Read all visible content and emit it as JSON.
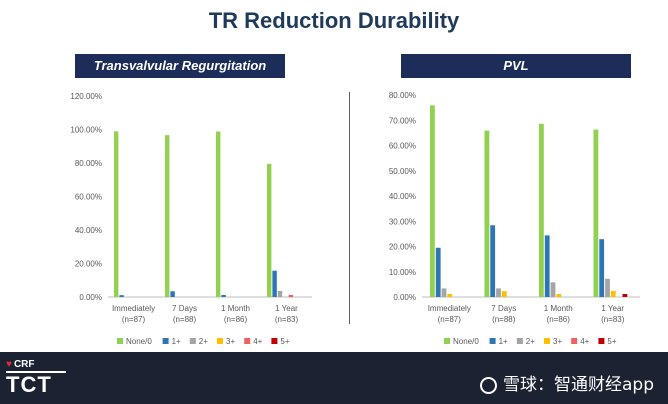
{
  "page_title": "TR Reduction Durability",
  "chart_data": [
    {
      "type": "bar",
      "title": "Transvalvular Regurgitation",
      "categories": [
        "Immediately|(n=87)",
        "7 Days|(n=88)",
        "1 Month|(n=86)",
        "1 Year|(n=83)"
      ],
      "ylim": [
        0,
        120
      ],
      "yticks": [
        "0.00%",
        "20.00%",
        "40.00%",
        "60.00%",
        "80.00%",
        "100.00%",
        "120.00%"
      ],
      "series": [
        {
          "name": "None/0",
          "color": "#92d050",
          "values": [
            98.9,
            96.6,
            98.8,
            79.5
          ]
        },
        {
          "name": "1+",
          "color": "#2e75b6",
          "values": [
            1.1,
            3.4,
            1.2,
            15.7
          ]
        },
        {
          "name": "2+",
          "color": "#a5a5a5",
          "values": [
            0,
            0,
            0,
            3.6
          ]
        },
        {
          "name": "3+",
          "color": "#ffc000",
          "values": [
            0,
            0,
            0,
            0
          ]
        },
        {
          "name": "4+",
          "color": "#f0605d",
          "values": [
            0,
            0,
            0,
            1.2
          ]
        },
        {
          "name": "5+",
          "color": "#c00000",
          "values": [
            0,
            0,
            0,
            0
          ]
        }
      ],
      "legend": "bottom"
    },
    {
      "type": "bar",
      "title": "PVL",
      "categories": [
        "Immediately|(n=87)",
        "7 Days|(n=88)",
        "1 Month|(n=86)",
        "1 Year|(n=83)"
      ],
      "ylim": [
        0,
        80
      ],
      "yticks": [
        "0.00%",
        "10.00%",
        "20.00%",
        "30.00%",
        "40.00%",
        "50.00%",
        "60.00%",
        "70.00%",
        "80.00%"
      ],
      "series": [
        {
          "name": "None/0",
          "color": "#92d050",
          "values": [
            75.9,
            65.9,
            68.6,
            66.3
          ]
        },
        {
          "name": "1+",
          "color": "#2e75b6",
          "values": [
            19.5,
            28.4,
            24.4,
            22.9
          ]
        },
        {
          "name": "2+",
          "color": "#a5a5a5",
          "values": [
            3.4,
            3.4,
            5.8,
            7.2
          ]
        },
        {
          "name": "3+",
          "color": "#ffc000",
          "values": [
            1.2,
            2.3,
            1.2,
            2.4
          ]
        },
        {
          "name": "4+",
          "color": "#f0605d",
          "values": [
            0,
            0,
            0,
            0
          ]
        },
        {
          "name": "5+",
          "color": "#c00000",
          "values": [
            0,
            0,
            0,
            1.2
          ]
        }
      ],
      "legend": "bottom"
    }
  ],
  "footer": {
    "crf_label": "CRF",
    "tct_label": "TCT",
    "watermark": "雪球：智通财经app"
  }
}
